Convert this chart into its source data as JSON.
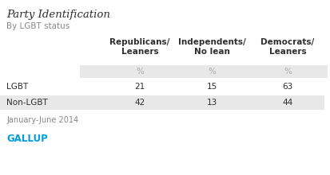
{
  "title": "Party Identification",
  "subtitle": "By LGBT status",
  "col_headers": [
    "Republicans/\nLeaners",
    "Independents/\nNo lean",
    "Democrats/\nLeaners"
  ],
  "row_labels": [
    "",
    "LGBT",
    "Non-LGBT"
  ],
  "pct_row": [
    "",
    "%",
    "%",
    "%"
  ],
  "data": [
    [
      21,
      15,
      63
    ],
    [
      42,
      13,
      44
    ]
  ],
  "footer": "January-June 2014",
  "brand": "GALLUP",
  "bg_color": "#ffffff",
  "stripe_color": "#e8e8e8",
  "header_color": "#2e2e2e",
  "data_color": "#2e2e2e",
  "title_color": "#2e2e2e",
  "subtitle_color": "#888888",
  "footer_color": "#888888",
  "brand_color": "#009fdf",
  "pct_color": "#aaaaaa"
}
